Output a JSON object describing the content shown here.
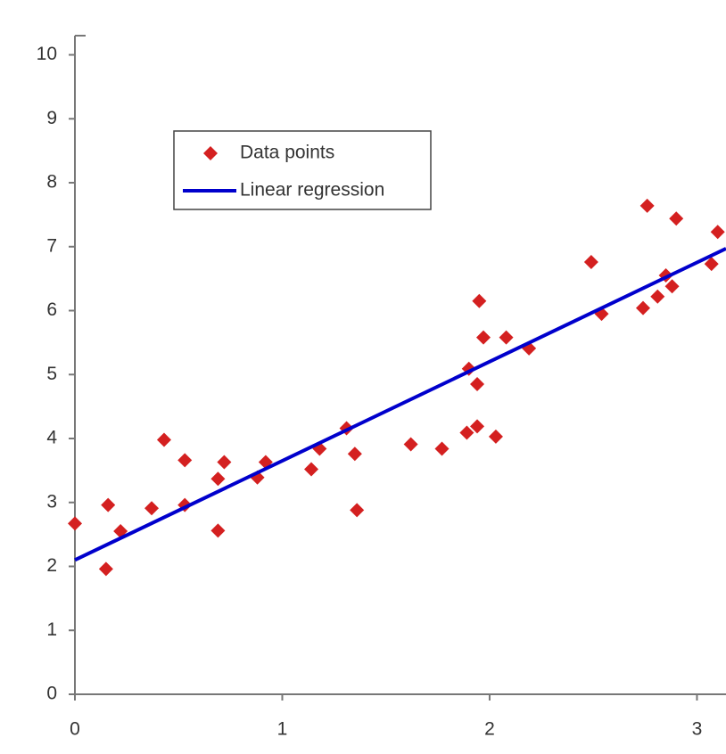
{
  "chart_data": {
    "type": "scatter",
    "xlim": [
      0,
      3.14
    ],
    "ylim": [
      0,
      10.3
    ],
    "xticks": [
      0,
      1,
      2,
      3
    ],
    "yticks": [
      0,
      1,
      2,
      3,
      4,
      5,
      6,
      7,
      8,
      9,
      10
    ],
    "grid": false,
    "legend": "upper-left",
    "series": [
      {
        "name": "Data points",
        "type": "scatter",
        "color": "#d42020",
        "x": [
          0,
          0.16,
          0.15,
          0.22,
          0.37,
          0.43,
          0.53,
          0.53,
          0.69,
          0.69,
          0.72,
          0.88,
          0.92,
          1.14,
          1.18,
          1.31,
          1.35,
          1.36,
          1.62,
          1.77,
          1.9,
          1.89,
          1.94,
          1.94,
          1.95,
          1.97,
          2.03,
          2.08,
          2.19,
          2.49,
          2.54,
          2.74,
          2.76,
          2.81,
          2.85,
          2.88,
          2.9,
          3.07,
          3.1
        ],
        "values": [
          2.67,
          2.96,
          1.96,
          2.55,
          2.91,
          3.98,
          3.66,
          2.96,
          3.37,
          2.56,
          3.63,
          3.39,
          3.63,
          3.52,
          3.84,
          4.16,
          3.76,
          2.88,
          3.91,
          3.84,
          5.09,
          4.09,
          4.19,
          4.85,
          6.15,
          5.58,
          4.03,
          5.58,
          5.41,
          6.76,
          5.95,
          6.04,
          7.64,
          6.22,
          6.55,
          6.38,
          7.44,
          6.73,
          7.23
        ]
      },
      {
        "name": "Linear regression",
        "type": "line",
        "color": "#0000cc",
        "x": [
          0,
          3.14
        ],
        "values": [
          2.1,
          6.97
        ]
      }
    ]
  }
}
